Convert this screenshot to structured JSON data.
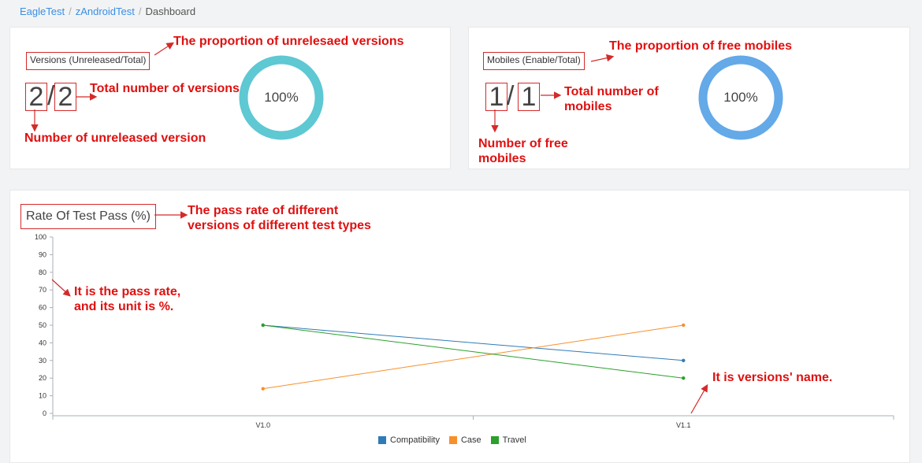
{
  "breadcrumb": {
    "items": [
      "EagleTest",
      "zAndroidTest"
    ],
    "current": "Dashboard"
  },
  "versions_card": {
    "label": "Versions (Unreleased/Total)",
    "unreleased": "2",
    "total": "2",
    "percent": "100%",
    "ring_color": "#5ec8d3"
  },
  "mobiles_card": {
    "label": "Mobiles (Enable/Total)",
    "enabled": "1",
    "total": "1",
    "percent": "100%",
    "ring_color": "#64a9e8"
  },
  "annotations": {
    "versions_proportion": "The proportion of unrelesaed versions",
    "versions_total": "Total number of versions",
    "versions_unreleased": "Number of unreleased version",
    "mobiles_proportion": "The proportion of free mobiles",
    "mobiles_total_l1": "Total number of",
    "mobiles_total_l2": "mobiles",
    "mobiles_free_l1": "Number of free",
    "mobiles_free_l2": "mobiles",
    "chart_desc_l1": "The pass rate of different",
    "chart_desc_l2": "versions of different test types",
    "yaxis_l1": "It is the pass rate,",
    "yaxis_l2": "and  its unit is %.",
    "xaxis": "It is versions' name."
  },
  "chart_data": {
    "type": "line",
    "title": "Rate Of Test Pass (%)",
    "categories": [
      "V1.0",
      "V1.1"
    ],
    "ylim": [
      0,
      100
    ],
    "yticks": [
      0,
      10,
      20,
      30,
      40,
      50,
      60,
      70,
      80,
      90,
      100
    ],
    "series": [
      {
        "name": "Compatibility",
        "values": [
          50,
          30
        ],
        "color": "#2f7bb6"
      },
      {
        "name": "Case",
        "values": [
          14,
          50
        ],
        "color": "#f7902a"
      },
      {
        "name": "Travel",
        "values": [
          50,
          20
        ],
        "color": "#2ca02c"
      }
    ],
    "legend": "bottom-center"
  }
}
